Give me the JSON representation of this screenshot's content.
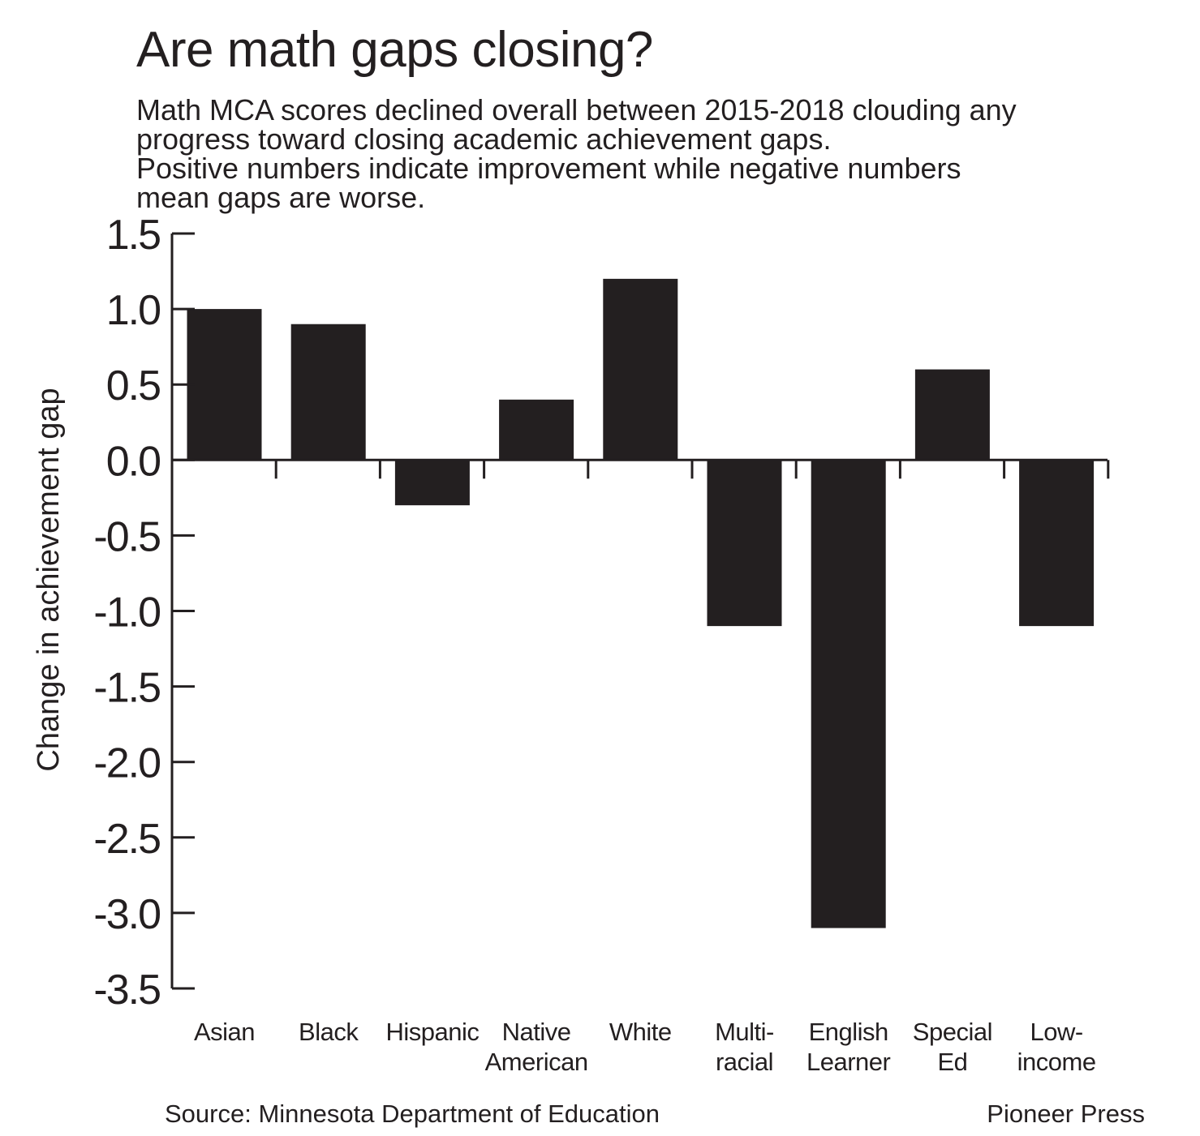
{
  "header": {
    "title": "Are math gaps closing?",
    "subtitle_lines": [
      "Math MCA scores declined overall between 2015-2018 clouding any",
      "progress toward closing academic achievement gaps.",
      "Positive numbers indicate improvement while negative numbers",
      "mean gaps are worse."
    ]
  },
  "footer": {
    "source": "Source: Minnesota Department of Education",
    "credit": "Pioneer Press"
  },
  "chart_data": {
    "type": "bar",
    "title": "Are math gaps closing?",
    "ylabel": "Change in achievement gap",
    "xlabel": "",
    "categories": [
      [
        "Asian"
      ],
      [
        "Black"
      ],
      [
        "Hispanic"
      ],
      [
        "Native",
        "American"
      ],
      [
        "White"
      ],
      [
        "Multi-",
        "racial"
      ],
      [
        "English",
        "Learner"
      ],
      [
        "Special",
        "Ed"
      ],
      [
        "Low-",
        "income"
      ]
    ],
    "values": [
      1.0,
      0.9,
      -0.3,
      0.4,
      1.2,
      -1.1,
      -3.1,
      0.6,
      -1.1
    ],
    "ylim": [
      -3.5,
      1.5
    ],
    "yticks": [
      "1.5",
      "1.0",
      "0.5",
      "0.0",
      "-0.5",
      "-1.0",
      "-1.5",
      "-2.0",
      "-2.5",
      "-3.0",
      "-3.5"
    ],
    "grid": false,
    "legend": "none",
    "colors": {
      "bar": "#231f20",
      "axis": "#231f20",
      "text": "#231f20"
    }
  }
}
